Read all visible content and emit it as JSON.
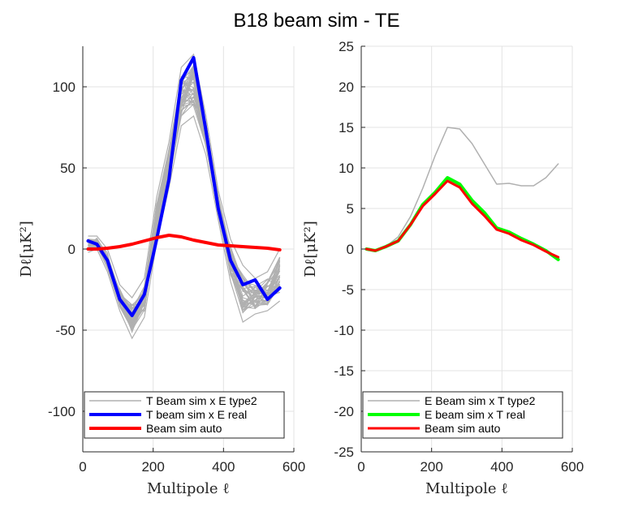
{
  "title": "B18 beam sim - TE",
  "chart_data": [
    {
      "type": "line",
      "xlabel": "Multipole ℓ",
      "ylabel": "Dℓ[μK²]",
      "xlim": [
        0,
        600
      ],
      "ylim": [
        -125,
        125
      ],
      "xticks": [
        0,
        200,
        400,
        600
      ],
      "yticks": [
        -100,
        -50,
        0,
        50,
        100
      ],
      "grid": true,
      "legend_position": "bottom",
      "x": [
        15,
        40,
        70,
        105,
        140,
        175,
        210,
        245,
        280,
        315,
        350,
        385,
        420,
        455,
        490,
        525,
        560
      ],
      "band": {
        "name": "T Beam sim x E type2",
        "color": "#b0b0b0",
        "lower": [
          -2,
          0,
          -14,
          -38,
          -55,
          -42,
          4,
          38,
          76,
          82,
          58,
          18,
          -20,
          -45,
          -40,
          -38,
          -32
        ],
        "upper": [
          8,
          8,
          0,
          -22,
          -30,
          -18,
          32,
          66,
          112,
          120,
          82,
          36,
          6,
          -10,
          -18,
          -14,
          0
        ],
        "n_traces": 40
      },
      "series": [
        {
          "name": "T beam sim x E real",
          "color": "#0000ff",
          "width": 4,
          "values": [
            5,
            3,
            -7,
            -31,
            -41,
            -28,
            6,
            43,
            104,
            118,
            73,
            25,
            -7,
            -22,
            -19,
            -31,
            -24
          ]
        },
        {
          "name": "Beam sim auto",
          "color": "#ff0000",
          "width": 4,
          "values": [
            0,
            0,
            0.5,
            1.5,
            3,
            5,
            7,
            8.5,
            7.5,
            5.5,
            4,
            2.5,
            2,
            1.5,
            1,
            0.5,
            -0.5
          ]
        }
      ]
    },
    {
      "type": "line",
      "xlabel": "Multipole ℓ",
      "ylabel": "Dℓ[μK²]",
      "xlim": [
        0,
        600
      ],
      "ylim": [
        -25,
        25
      ],
      "xticks": [
        0,
        200,
        400,
        600
      ],
      "yticks": [
        -25,
        -20,
        -15,
        -10,
        -5,
        0,
        5,
        10,
        15,
        20,
        25
      ],
      "grid": true,
      "legend_position": "bottom",
      "x": [
        15,
        40,
        70,
        105,
        140,
        175,
        210,
        245,
        280,
        315,
        350,
        385,
        420,
        455,
        490,
        525,
        560
      ],
      "series": [
        {
          "name": "E Beam sim x T type2",
          "color": "#b0b0b0",
          "width": 1.5,
          "values": [
            0,
            -0.2,
            0.3,
            1.5,
            4,
            7.5,
            11.5,
            15,
            14.8,
            13,
            10.5,
            8,
            8.1,
            7.8,
            7.8,
            8.8,
            10.5
          ]
        },
        {
          "name": "E beam sim x T real",
          "color": "#00ff00",
          "width": 4,
          "values": [
            0,
            -0.2,
            0.3,
            1,
            3,
            5.5,
            7,
            8.8,
            8,
            6,
            4.5,
            2.6,
            2.1,
            1.3,
            0.6,
            -0.2,
            -1.3
          ]
        },
        {
          "name": "Beam sim auto",
          "color": "#ff0000",
          "width": 3,
          "values": [
            0,
            -0.2,
            0.3,
            1,
            3,
            5.3,
            6.8,
            8.4,
            7.6,
            5.6,
            4.1,
            2.4,
            1.9,
            1.1,
            0.5,
            -0.3,
            -1.0
          ]
        }
      ]
    }
  ]
}
